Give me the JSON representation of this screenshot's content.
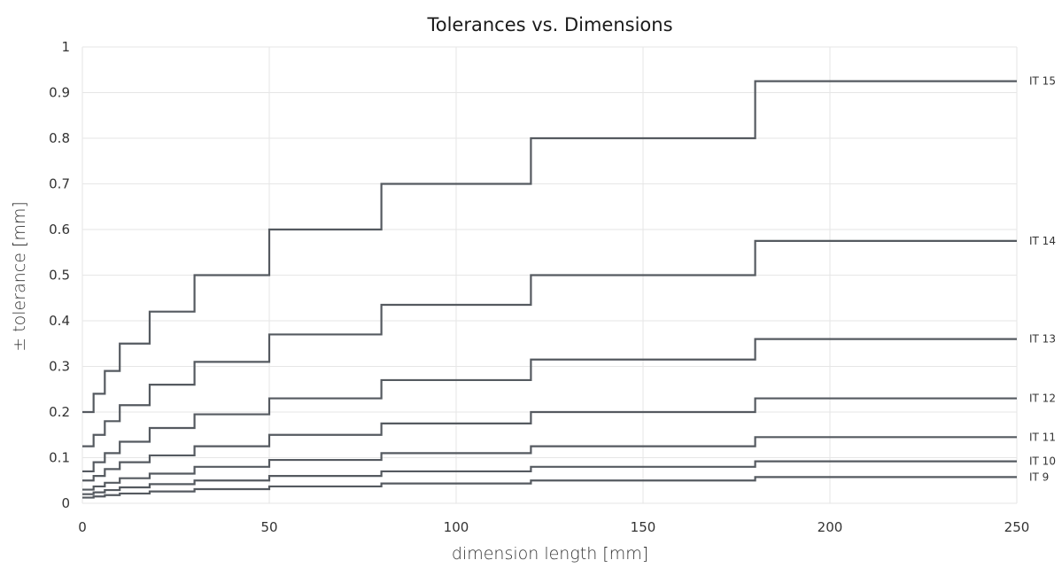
{
  "chart_data": {
    "type": "line",
    "step": "post",
    "title": "Tolerances vs. Dimensions",
    "xlabel": "dimension length [mm]",
    "ylabel": "± tolerance [mm]",
    "xlim": [
      0,
      250
    ],
    "ylim": [
      0,
      1
    ],
    "xticks": [
      0,
      50,
      100,
      150,
      200,
      250
    ],
    "yticks": [
      0,
      0.1,
      0.2,
      0.3,
      0.4,
      0.5,
      0.6,
      0.7,
      0.8,
      0.9,
      1
    ],
    "grid": true,
    "line_color": "#555a60",
    "x": [
      0,
      1,
      3,
      6,
      10,
      18,
      30,
      50,
      80,
      120,
      180,
      250
    ],
    "series": [
      {
        "name": "IT 15",
        "values": [
          0.2,
          0.2,
          0.24,
          0.29,
          0.35,
          0.42,
          0.5,
          0.6,
          0.7,
          0.8,
          0.925,
          0.925
        ]
      },
      {
        "name": "IT 14",
        "values": [
          0.125,
          0.125,
          0.15,
          0.18,
          0.215,
          0.26,
          0.31,
          0.37,
          0.435,
          0.5,
          0.575,
          0.575
        ]
      },
      {
        "name": "IT 13",
        "values": [
          0.07,
          0.07,
          0.09,
          0.11,
          0.135,
          0.165,
          0.195,
          0.23,
          0.27,
          0.315,
          0.36,
          0.36
        ]
      },
      {
        "name": "IT 12",
        "values": [
          0.05,
          0.05,
          0.06,
          0.075,
          0.09,
          0.105,
          0.125,
          0.15,
          0.175,
          0.2,
          0.23,
          0.23
        ]
      },
      {
        "name": "IT 11",
        "values": [
          0.03,
          0.03,
          0.037,
          0.045,
          0.055,
          0.065,
          0.08,
          0.095,
          0.11,
          0.125,
          0.145,
          0.145
        ]
      },
      {
        "name": "IT 10",
        "values": [
          0.02,
          0.02,
          0.024,
          0.029,
          0.035,
          0.042,
          0.05,
          0.06,
          0.07,
          0.08,
          0.092,
          0.092
        ]
      },
      {
        "name": "IT 9",
        "values": [
          0.0125,
          0.0125,
          0.015,
          0.018,
          0.0215,
          0.026,
          0.031,
          0.037,
          0.0435,
          0.05,
          0.0575,
          0.0575
        ]
      }
    ]
  }
}
